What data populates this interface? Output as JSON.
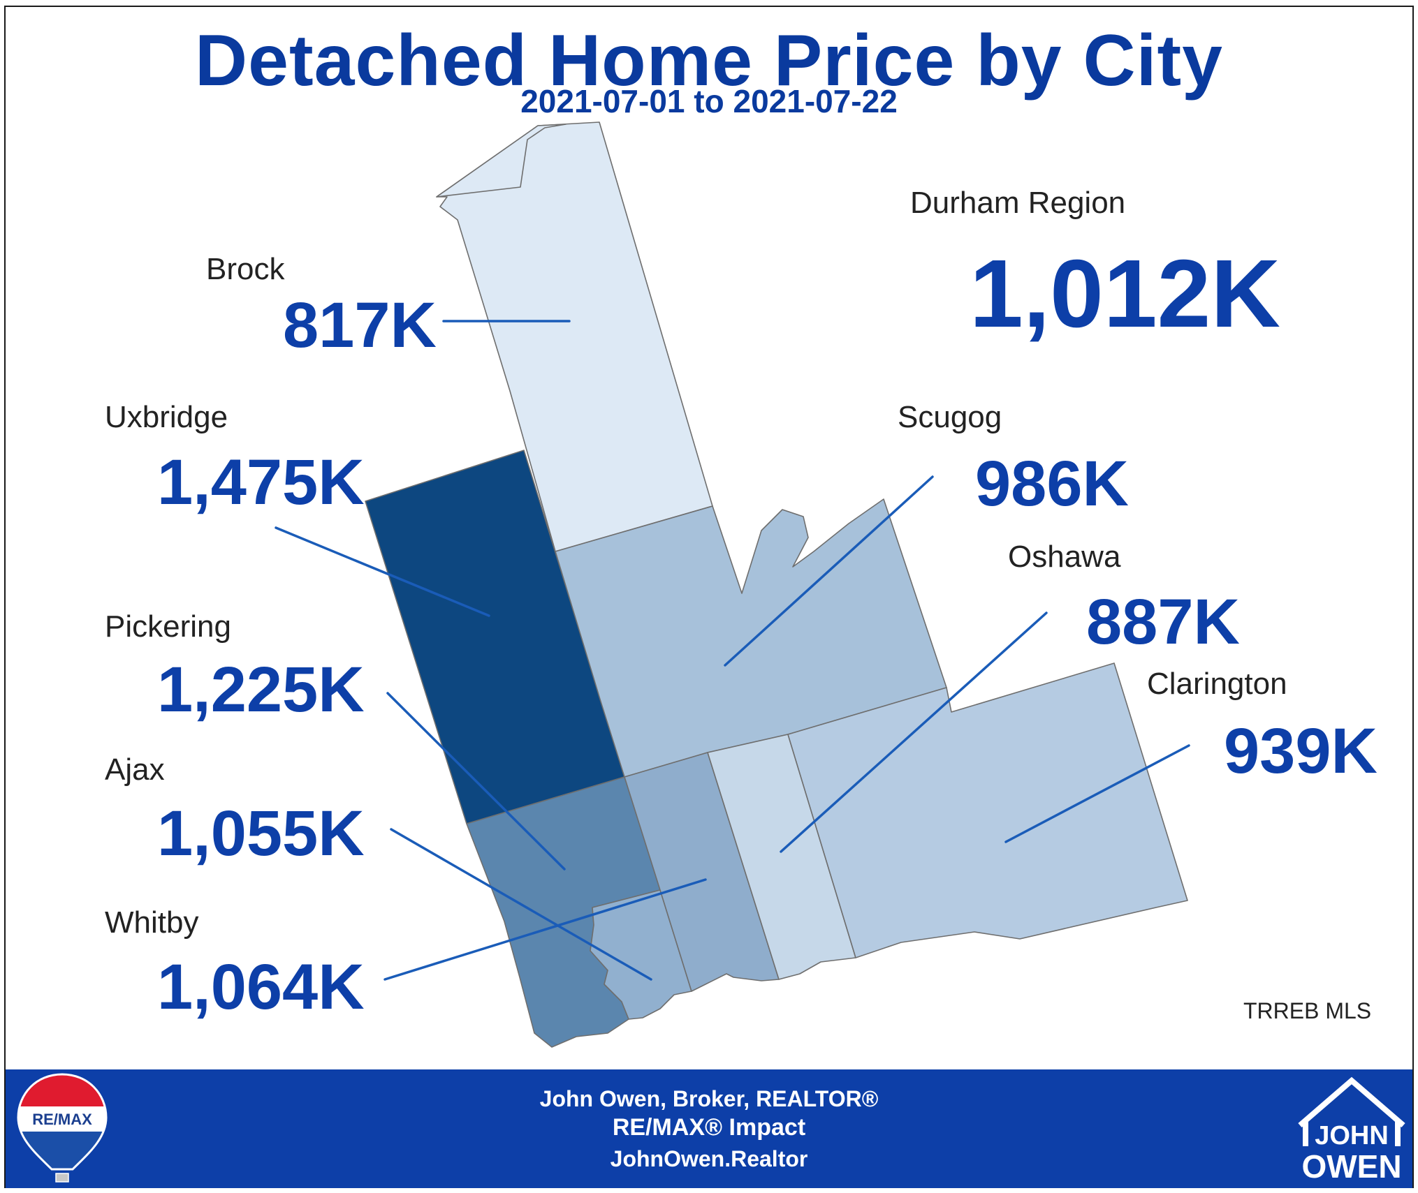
{
  "title": "Detached Home Price by City",
  "subtitle": "2021-07-01 to 2021-07-22",
  "region": {
    "label": "Durham Region",
    "value": "1,012K"
  },
  "cities": [
    {
      "name": "Brock",
      "value": "817K",
      "fill": "#dde9f5"
    },
    {
      "name": "Uxbridge",
      "value": "1,475K",
      "fill": "#0d4780"
    },
    {
      "name": "Pickering",
      "value": "1,225K",
      "fill": "#5b86ae"
    },
    {
      "name": "Ajax",
      "value": "1,055K",
      "fill": "#91b0cf"
    },
    {
      "name": "Whitby",
      "value": "1,064K",
      "fill": "#8fadcc"
    },
    {
      "name": "Scugog",
      "value": "986K",
      "fill": "#a7c1da"
    },
    {
      "name": "Oshawa",
      "value": "887K",
      "fill": "#c6d8e9"
    },
    {
      "name": "Clarington",
      "value": "939K",
      "fill": "#b5cbe2"
    }
  ],
  "source": "TRREB MLS",
  "footer": {
    "line1": "John Owen, Broker, REALTOR®",
    "line2": "RE/MAX® Impact",
    "line3": "JohnOwen.Realtor",
    "remax_logo": "RE/MAX",
    "john_owen_logo": [
      "JOHN",
      "OWEN"
    ]
  },
  "colors": {
    "title_blue": "#0a3a9e",
    "value_blue": "#0d3fa8",
    "leader_blue": "#1a5cb8",
    "footer_blue": "#0d3fa8"
  },
  "icons": [
    "remax-balloon-icon",
    "house-outline-icon"
  ]
}
